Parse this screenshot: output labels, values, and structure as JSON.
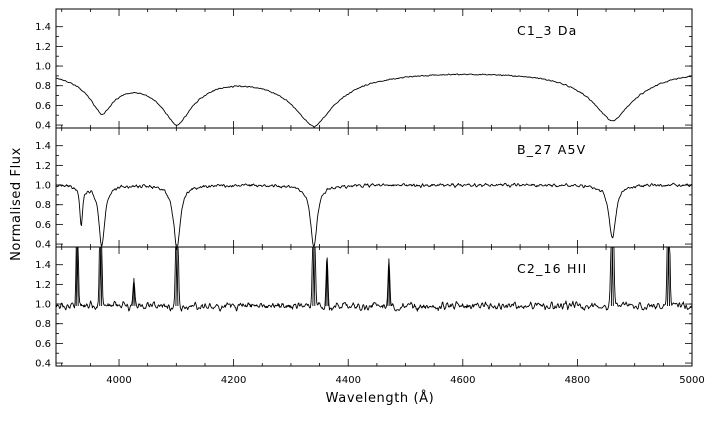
{
  "chart_data": {
    "type": "line",
    "xlabel": "Wavelength (Å)",
    "ylabel": "Normalised Flux",
    "xlim": [
      3890,
      5000
    ],
    "x_ticks": [
      4000,
      4200,
      4400,
      4600,
      4800,
      5000
    ],
    "x_tick_labels": [
      "4000",
      "4200",
      "4400",
      "4600",
      "4800",
      "5000"
    ],
    "panels": [
      {
        "label": "C1_3 Da",
        "ylim": [
          0.37,
          1.58
        ],
        "y_ticks": [
          0.4,
          0.6,
          0.8,
          1.0,
          1.2,
          1.4
        ],
        "y_tick_labels": [
          "0.4",
          "0.6",
          "0.8",
          "1.0",
          "1.2",
          "1.4"
        ],
        "continuum": 1.0,
        "noise": 0.008,
        "lines": [
          {
            "center": 3970,
            "depth": 0.4,
            "width": 30,
            "kind": "broad"
          },
          {
            "center": 4101,
            "depth": 0.52,
            "width": 38,
            "kind": "broad"
          },
          {
            "center": 4340,
            "depth": 0.57,
            "width": 50,
            "kind": "broad"
          },
          {
            "center": 4861,
            "depth": 0.54,
            "width": 50,
            "kind": "broad"
          }
        ]
      },
      {
        "label": "B_27 A5V",
        "ylim": [
          0.37,
          1.58
        ],
        "y_ticks": [
          0.4,
          0.6,
          0.8,
          1.0,
          1.2,
          1.4
        ],
        "y_tick_labels": [
          "0.4",
          "0.6",
          "0.8",
          "1.0",
          "1.2",
          "1.4"
        ],
        "continuum": 1.0,
        "noise": 0.022,
        "lines": [
          {
            "center": 3934,
            "depth": 0.4,
            "width": 3,
            "kind": "narrow"
          },
          {
            "center": 3970,
            "depth": 0.62,
            "width": 6,
            "kind": "narrow"
          },
          {
            "center": 4101,
            "depth": 0.63,
            "width": 7,
            "kind": "narrow"
          },
          {
            "center": 4340,
            "depth": 0.62,
            "width": 7,
            "kind": "narrow"
          },
          {
            "center": 4861,
            "depth": 0.55,
            "width": 7,
            "kind": "narrow"
          }
        ]
      },
      {
        "label": "C2_16 HII",
        "ylim": [
          0.37,
          1.58
        ],
        "y_ticks": [
          0.4,
          0.6,
          0.8,
          1.0,
          1.2,
          1.4
        ],
        "y_tick_labels": [
          "0.4",
          "0.6",
          "0.8",
          "1.0",
          "1.2",
          "1.4"
        ],
        "continuum": 0.98,
        "noise": 0.05,
        "lines": [
          {
            "center": 3927,
            "depth": -1.6,
            "width": 1.4,
            "kind": "emission"
          },
          {
            "center": 3968,
            "depth": -1.6,
            "width": 1.6,
            "kind": "emission"
          },
          {
            "center": 4026,
            "depth": -0.28,
            "width": 1.8,
            "kind": "emission"
          },
          {
            "center": 4101,
            "depth": -1.6,
            "width": 1.8,
            "kind": "emission"
          },
          {
            "center": 4340,
            "depth": -1.6,
            "width": 1.8,
            "kind": "emission"
          },
          {
            "center": 4363,
            "depth": -0.45,
            "width": 1.6,
            "kind": "emission"
          },
          {
            "center": 4471,
            "depth": -0.48,
            "width": 1.6,
            "kind": "emission"
          },
          {
            "center": 4861,
            "depth": -1.6,
            "width": 2.0,
            "kind": "emission"
          },
          {
            "center": 4959,
            "depth": -1.6,
            "width": 1.8,
            "kind": "emission"
          }
        ]
      }
    ],
    "grid": false,
    "legend": "none"
  }
}
